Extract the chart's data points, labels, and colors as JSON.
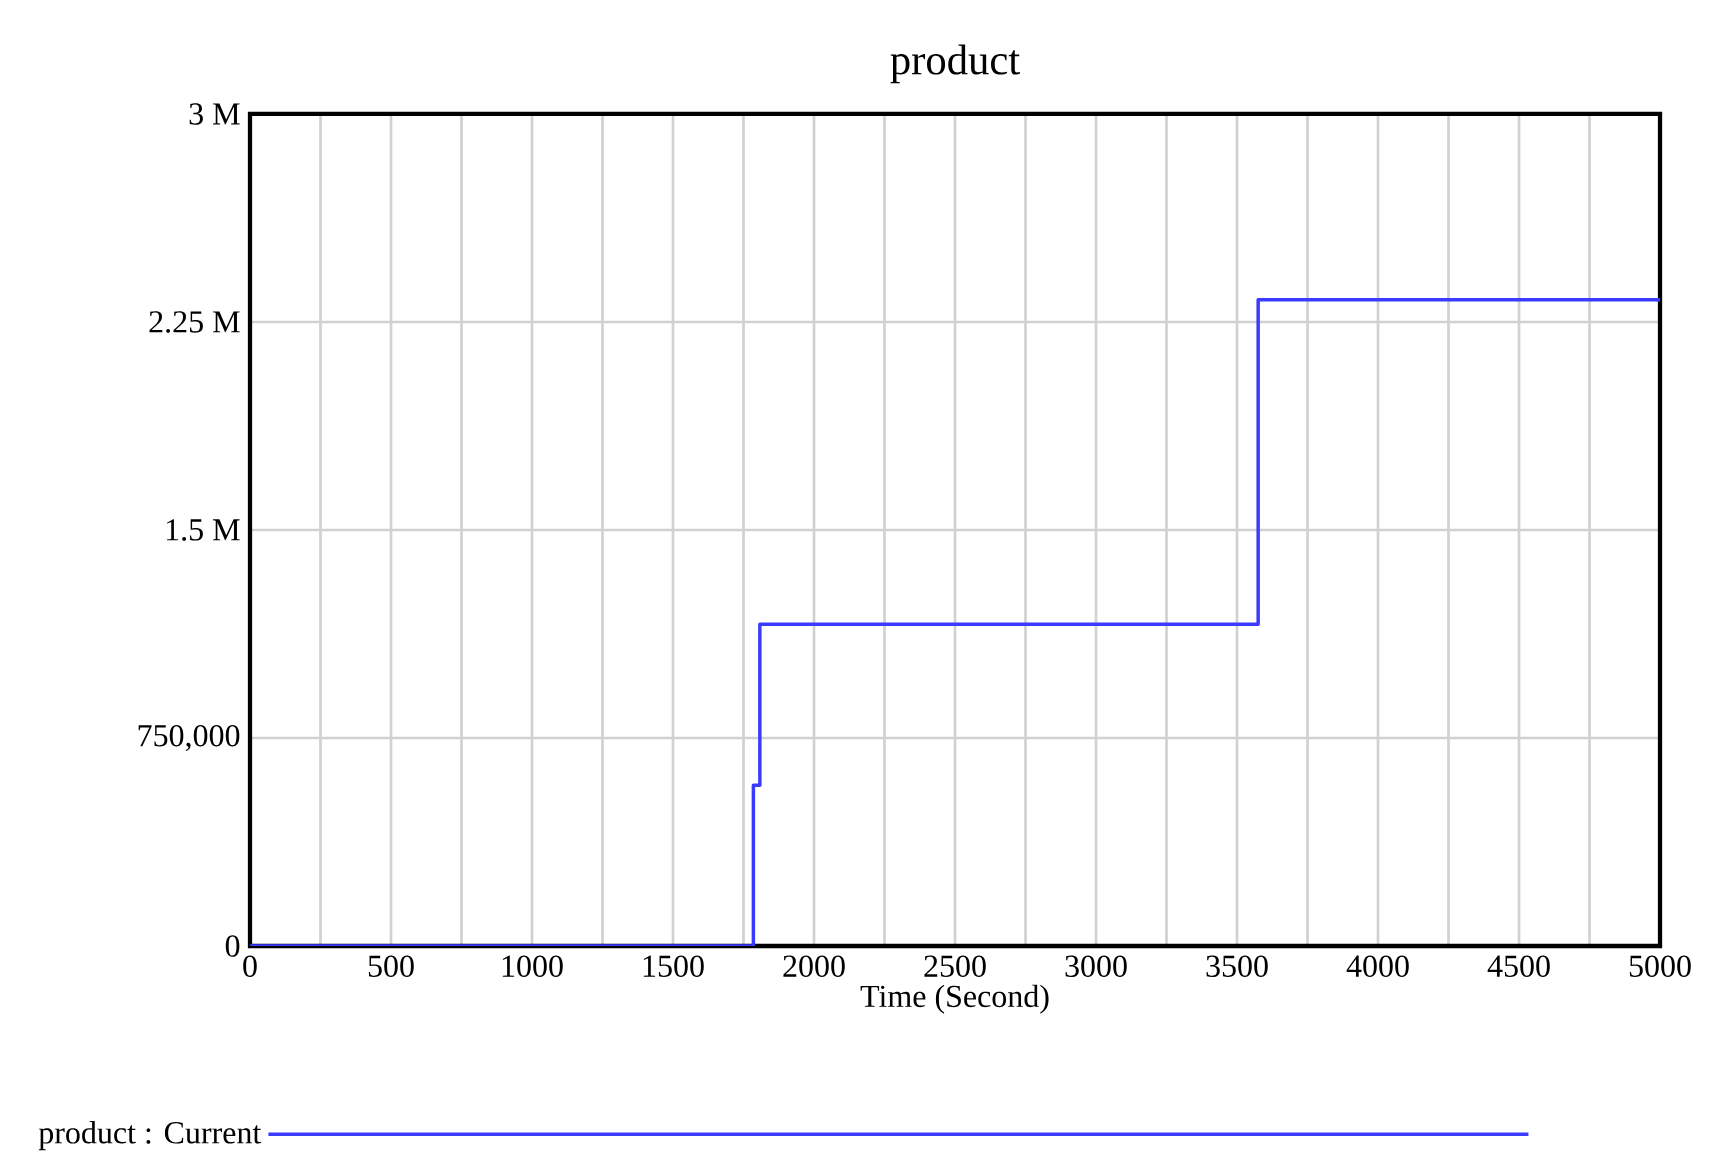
{
  "chart_data": {
    "type": "step",
    "title": "product",
    "xlabel": "Time (Second)",
    "series": [
      {
        "name": "product : Current",
        "color": "#3b3bff",
        "x": [
          0,
          1785,
          1808,
          3575,
          5000
        ],
        "values": [
          0,
          580000,
          1160000,
          2330000,
          2330000
        ]
      }
    ],
    "xlim": [
      0,
      5000
    ],
    "xticks": [
      0,
      {
        "value": 250,
        "label": null
      },
      500,
      {
        "value": 750,
        "label": null
      },
      1000,
      {
        "value": 1250,
        "label": null
      },
      1500,
      {
        "value": 1750,
        "label": null
      },
      2000,
      {
        "value": 2250,
        "label": null
      },
      2500,
      {
        "value": 2750,
        "label": null
      },
      3000,
      {
        "value": 3250,
        "label": null
      },
      3500,
      {
        "value": 3750,
        "label": null
      },
      4000,
      {
        "value": 4250,
        "label": null
      },
      4500,
      {
        "value": 4750,
        "label": null
      },
      5000
    ],
    "ylim": [
      0,
      3000000
    ],
    "yticks": [
      0,
      {
        "value": 750000,
        "label": "750,000"
      },
      {
        "value": 1500000,
        "label": "1.5 M"
      },
      {
        "value": 2250000,
        "label": "2.25 M"
      },
      {
        "value": 3000000,
        "label": "3 M"
      }
    ],
    "grid": true,
    "legend": "bottom"
  }
}
